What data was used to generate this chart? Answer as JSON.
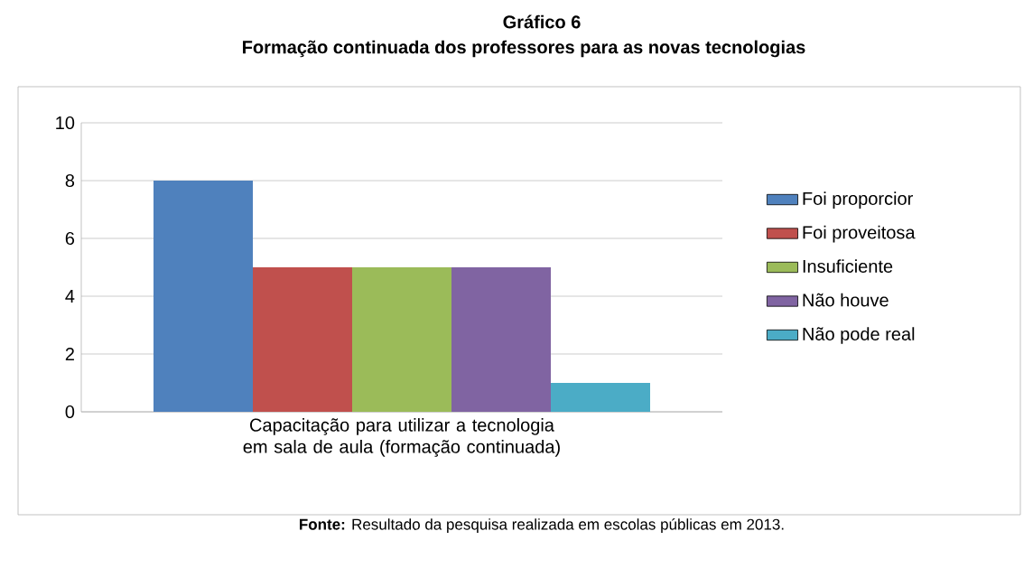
{
  "chart_data": {
    "type": "bar",
    "title": "Gráfico 6",
    "subtitle": "Formação continuada dos professores para as novas tecnologias",
    "categories": [
      "Capacitação para utilizar a tecnologia em sala de aula (formação continuada)"
    ],
    "series": [
      {
        "name": "Foi proporcior",
        "color": "#4f81bd",
        "values": [
          8
        ]
      },
      {
        "name": "Foi proveitosa",
        "color": "#c0504d",
        "values": [
          5
        ]
      },
      {
        "name": "Insuficiente",
        "color": "#9bbb59",
        "values": [
          5
        ]
      },
      {
        "name": "Não houve",
        "color": "#8064a2",
        "values": [
          5
        ]
      },
      {
        "name": "Não pode real",
        "color": "#4bacc6",
        "values": [
          1
        ]
      }
    ],
    "ylim": [
      0,
      10
    ],
    "yticks": [
      0,
      2,
      4,
      6,
      8,
      10
    ],
    "grid": "y",
    "legend": "right",
    "annotations": [
      "**Fonte:** Resultado da pesquisa realizada em escolas públicas em 2013."
    ]
  }
}
